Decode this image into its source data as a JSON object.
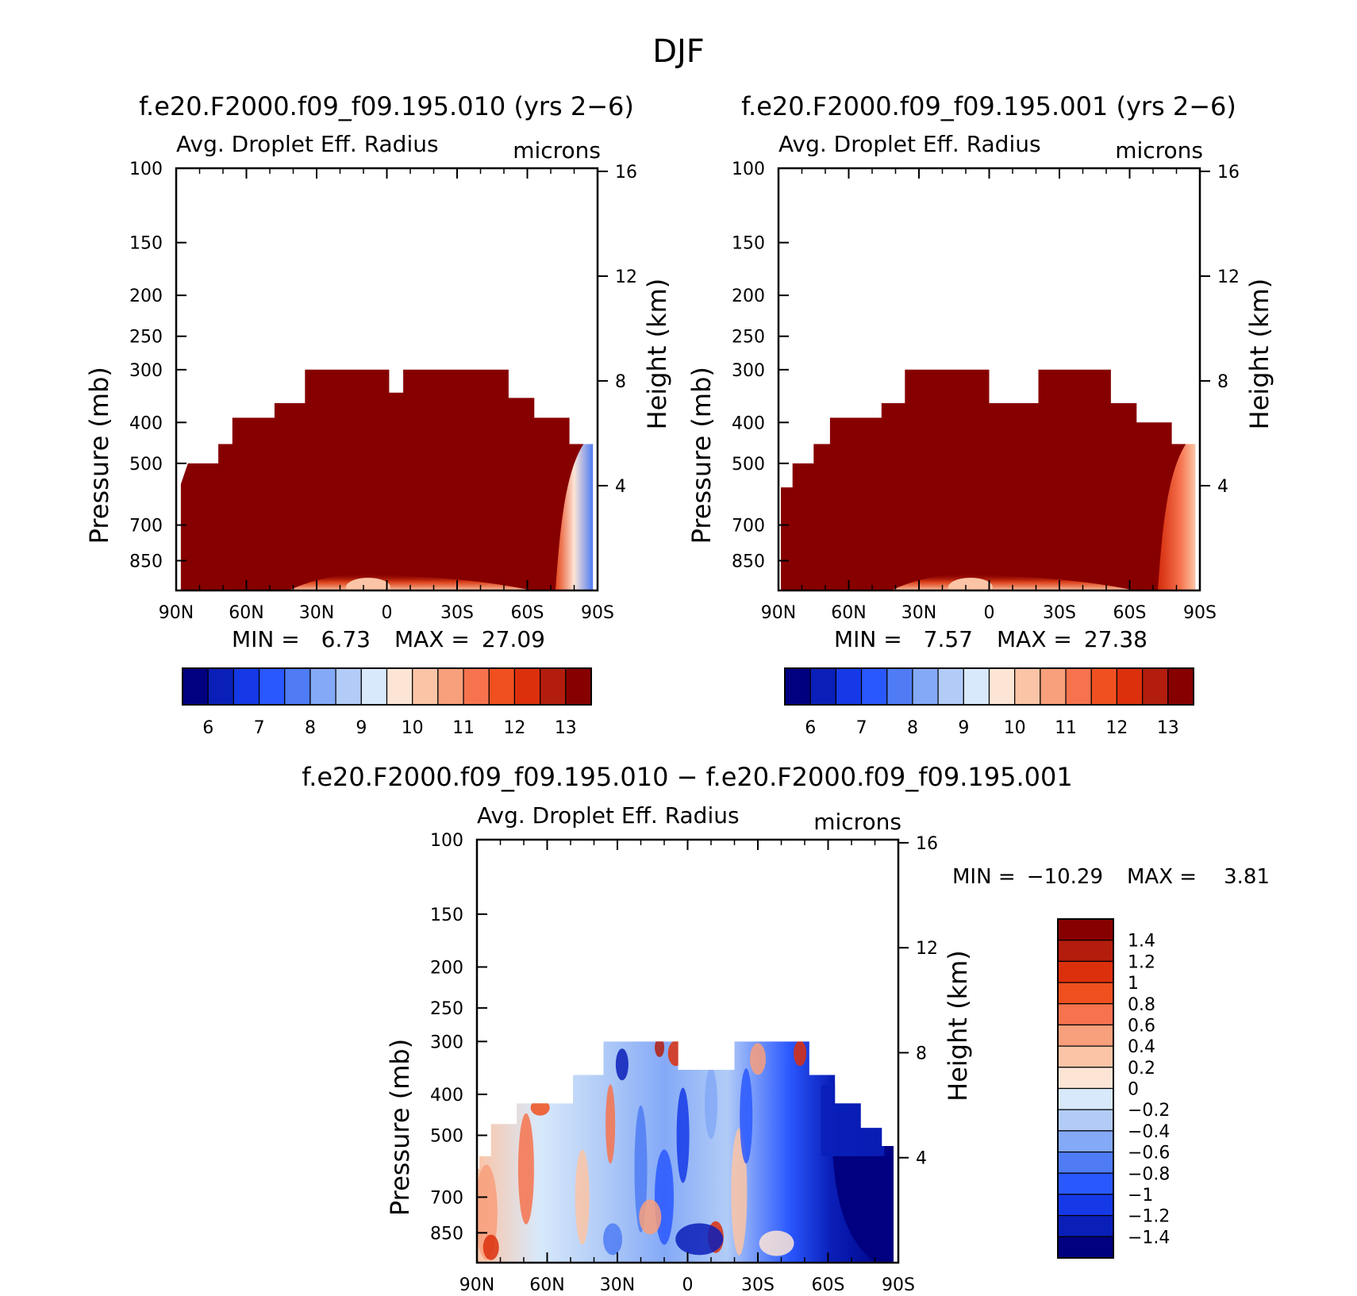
{
  "figure_title": "DJF",
  "chart_data": [
    {
      "type": "contour",
      "id": "panel1",
      "title": "f.e20.F2000.f09_f09.195.010 (yrs 2−6)",
      "variable": "Avg. Droplet Eff. Radius",
      "units": "microns",
      "xlabel": "",
      "ylabel": "Pressure (mb)",
      "ylabel_right": "Height (km)",
      "x_ticks": [
        "90N",
        "60N",
        "30N",
        "0",
        "30S",
        "60S",
        "90S"
      ],
      "y_ticks": [
        100,
        150,
        200,
        250,
        300,
        400,
        500,
        700,
        850
      ],
      "y_right_ticks": [
        16,
        12,
        8,
        4
      ],
      "ylim": [
        100,
        1000
      ],
      "min_label": "MIN =",
      "min_value": "6.73",
      "max_label": "MAX =",
      "max_value": "27.09",
      "colorbar_labels": [
        "6",
        "7",
        "8",
        "9",
        "10",
        "11",
        "12",
        "13"
      ],
      "cloud_top_profile": [
        {
          "lat": 88,
          "p": 560
        },
        {
          "lat": 85,
          "p": 500
        },
        {
          "lat": 72,
          "p": 500
        },
        {
          "lat": 72,
          "p": 450
        },
        {
          "lat": 66,
          "p": 450
        },
        {
          "lat": 66,
          "p": 390
        },
        {
          "lat": 48,
          "p": 390
        },
        {
          "lat": 48,
          "p": 360
        },
        {
          "lat": 35,
          "p": 360
        },
        {
          "lat": 35,
          "p": 300
        },
        {
          "lat": -1,
          "p": 300
        },
        {
          "lat": -1,
          "p": 340
        },
        {
          "lat": -7,
          "p": 340
        },
        {
          "lat": -7,
          "p": 300
        },
        {
          "lat": -52,
          "p": 300
        },
        {
          "lat": -52,
          "p": 350
        },
        {
          "lat": -63,
          "p": 350
        },
        {
          "lat": -63,
          "p": 390
        },
        {
          "lat": -78,
          "p": 390
        },
        {
          "lat": -78,
          "p": 450
        },
        {
          "lat": -88,
          "p": 450
        },
        {
          "lat": -88,
          "p": 620
        }
      ]
    },
    {
      "type": "contour",
      "id": "panel2",
      "title": "f.e20.F2000.f09_f09.195.001 (yrs 2−6)",
      "variable": "Avg. Droplet Eff. Radius",
      "units": "microns",
      "xlabel": "",
      "ylabel": "Pressure (mb)",
      "ylabel_right": "Height (km)",
      "x_ticks": [
        "90N",
        "60N",
        "30N",
        "0",
        "30S",
        "60S",
        "90S"
      ],
      "y_ticks": [
        100,
        150,
        200,
        250,
        300,
        400,
        500,
        700,
        850
      ],
      "y_right_ticks": [
        16,
        12,
        8,
        4
      ],
      "ylim": [
        100,
        1000
      ],
      "min_label": "MIN =",
      "min_value": "7.57",
      "max_label": "MAX =",
      "max_value": "27.38",
      "colorbar_labels": [
        "6",
        "7",
        "8",
        "9",
        "10",
        "11",
        "12",
        "13"
      ],
      "cloud_top_profile": [
        {
          "lat": 89,
          "p": 570
        },
        {
          "lat": 84,
          "p": 570
        },
        {
          "lat": 84,
          "p": 500
        },
        {
          "lat": 75,
          "p": 500
        },
        {
          "lat": 75,
          "p": 450
        },
        {
          "lat": 68,
          "p": 450
        },
        {
          "lat": 68,
          "p": 390
        },
        {
          "lat": 46,
          "p": 390
        },
        {
          "lat": 46,
          "p": 360
        },
        {
          "lat": 36,
          "p": 360
        },
        {
          "lat": 36,
          "p": 300
        },
        {
          "lat": 0,
          "p": 300
        },
        {
          "lat": 0,
          "p": 360
        },
        {
          "lat": -21,
          "p": 360
        },
        {
          "lat": -21,
          "p": 300
        },
        {
          "lat": -52,
          "p": 300
        },
        {
          "lat": -52,
          "p": 360
        },
        {
          "lat": -63,
          "p": 360
        },
        {
          "lat": -63,
          "p": 400
        },
        {
          "lat": -78,
          "p": 400
        },
        {
          "lat": -78,
          "p": 450
        },
        {
          "lat": -88,
          "p": 450
        },
        {
          "lat": -88,
          "p": 620
        }
      ]
    },
    {
      "type": "contour",
      "id": "panel3",
      "title": "f.e20.F2000.f09_f09.195.010 − f.e20.F2000.f09_f09.195.001",
      "variable": "Avg. Droplet Eff. Radius",
      "units": "microns",
      "xlabel": "",
      "ylabel": "Pressure (mb)",
      "ylabel_right": "Height (km)",
      "x_ticks": [
        "90N",
        "60N",
        "30N",
        "0",
        "30S",
        "60S",
        "90S"
      ],
      "y_ticks": [
        100,
        150,
        200,
        250,
        300,
        400,
        500,
        700,
        850
      ],
      "y_right_ticks": [
        16,
        12,
        8,
        4
      ],
      "ylim": [
        100,
        1000
      ],
      "min_label": "MIN =",
      "min_value": "−10.29",
      "max_label": "MAX =",
      "max_value": "3.81",
      "colorbar_labels": [
        "1.4",
        "1.2",
        "1",
        "0.8",
        "0.6",
        "0.4",
        "0.2",
        "0",
        "−0.2",
        "−0.4",
        "−0.6",
        "−0.8",
        "−1",
        "−1.2",
        "−1.4"
      ],
      "cloud_top_profile": [
        {
          "lat": 90,
          "p": 600
        },
        {
          "lat": 89,
          "p": 600
        },
        {
          "lat": 89,
          "p": 560
        },
        {
          "lat": 84,
          "p": 560
        },
        {
          "lat": 84,
          "p": 470
        },
        {
          "lat": 73,
          "p": 470
        },
        {
          "lat": 73,
          "p": 420
        },
        {
          "lat": 49,
          "p": 420
        },
        {
          "lat": 49,
          "p": 360
        },
        {
          "lat": 36,
          "p": 360
        },
        {
          "lat": 36,
          "p": 300
        },
        {
          "lat": 4,
          "p": 300
        },
        {
          "lat": 4,
          "p": 350
        },
        {
          "lat": -20,
          "p": 350
        },
        {
          "lat": -20,
          "p": 300
        },
        {
          "lat": -52,
          "p": 300
        },
        {
          "lat": -52,
          "p": 360
        },
        {
          "lat": -63,
          "p": 360
        },
        {
          "lat": -63,
          "p": 420
        },
        {
          "lat": -74,
          "p": 420
        },
        {
          "lat": -74,
          "p": 480
        },
        {
          "lat": -83,
          "p": 480
        },
        {
          "lat": -83,
          "p": 530
        },
        {
          "lat": -88,
          "p": 530
        },
        {
          "lat": -88,
          "p": 1000
        }
      ]
    }
  ],
  "palette_abs": [
    "#000080",
    "#0a1fb8",
    "#1539e6",
    "#2a58ff",
    "#4f7cf5",
    "#84a9f7",
    "#b2ccf7",
    "#d8e9fb",
    "#fde5d6",
    "#fbc4a6",
    "#f89f7b",
    "#f6734e",
    "#f0501f",
    "#dc300d",
    "#b31d0d",
    "#870000"
  ],
  "palette_diff": [
    "#870000",
    "#b31d0d",
    "#dc300d",
    "#f0501f",
    "#f6734e",
    "#f89f7b",
    "#fbc4a6",
    "#fde5d6",
    "#d8e9fb",
    "#b2ccf7",
    "#84a9f7",
    "#4f7cf5",
    "#2a58ff",
    "#1539e6",
    "#0a1fb8",
    "#000080"
  ]
}
